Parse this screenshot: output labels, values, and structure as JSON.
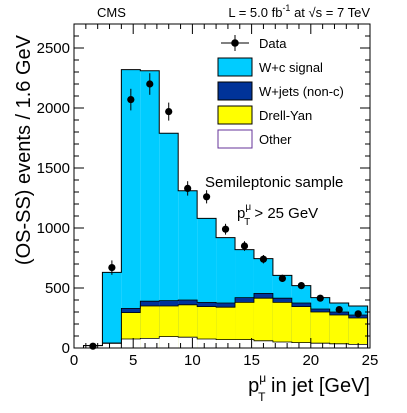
{
  "header": {
    "experiment": "CMS",
    "lumi_prefix": "L = 5.0 fb",
    "lumi_sup": "-1",
    "lumi_mid": " at ",
    "energy_root": "√s",
    "energy_value": " = 7 TeV"
  },
  "annotations": {
    "sample": "Semileptonic sample",
    "cut_p": "p",
    "cut_sup": "μ",
    "cut_sub": "T",
    "cut_rest": " > 25 GeV"
  },
  "colors": {
    "signal": "#00ccff",
    "wjets": "#003399",
    "drellyan": "#ffff00",
    "other": "#ffffff",
    "other_border": "#663399"
  },
  "chart_data": {
    "type": "bar",
    "stacked": true,
    "xlabel": {
      "main": "p",
      "sup": "μ",
      "sub": "T",
      "rest": " in jet [GeV]"
    },
    "ylabel": "(OS-SS) events / 1.6 GeV",
    "xlim": [
      0,
      25
    ],
    "ylim": [
      0,
      2700
    ],
    "xticks": [
      "0",
      "5",
      "10",
      "15",
      "20",
      "25"
    ],
    "yticks": [
      "0",
      "500",
      "1000",
      "1500",
      "2000",
      "2500"
    ],
    "bin_edges": [
      0.8,
      2.4,
      4.0,
      5.6,
      7.2,
      8.8,
      10.4,
      12.0,
      13.6,
      15.2,
      16.8,
      18.4,
      20.0,
      21.6,
      23.2,
      24.8
    ],
    "legend": {
      "placement": "top-right",
      "entries": [
        {
          "key": "data",
          "label": "Data",
          "style": "marker"
        },
        {
          "key": "signal",
          "label": "W+c signal",
          "style": "box"
        },
        {
          "key": "wjets",
          "label": "W+jets (non-c)",
          "style": "box"
        },
        {
          "key": "drellyan",
          "label": "Drell-Yan",
          "style": "box"
        },
        {
          "key": "other",
          "label": "Other",
          "style": "box"
        }
      ]
    },
    "series": [
      {
        "name": "Other",
        "key": "other",
        "values": [
          20,
          40,
          75,
          80,
          95,
          90,
          75,
          70,
          70,
          60,
          50,
          45,
          40,
          35,
          30
        ]
      },
      {
        "name": "Drell-Yan",
        "key": "drellyan",
        "values": [
          0,
          0,
          220,
          270,
          255,
          270,
          270,
          270,
          310,
          355,
          330,
          300,
          260,
          240,
          220
        ]
      },
      {
        "name": "W+jets (non-c)",
        "key": "wjets",
        "values": [
          0,
          0,
          35,
          40,
          45,
          40,
          35,
          35,
          40,
          40,
          35,
          30,
          25,
          25,
          25
        ]
      },
      {
        "name": "W+c signal",
        "key": "signal",
        "values": [
          0,
          590,
          1990,
          1920,
          1395,
          910,
          700,
          545,
          400,
          290,
          190,
          145,
          95,
          75,
          75
        ]
      }
    ],
    "data_points": {
      "x": [
        1.6,
        3.2,
        4.8,
        6.4,
        8.0,
        9.6,
        11.2,
        12.8,
        14.4,
        16.0,
        17.6,
        19.2,
        20.8,
        22.4,
        24.0
      ],
      "y": [
        15,
        670,
        2070,
        2200,
        1970,
        1330,
        1260,
        990,
        850,
        740,
        580,
        520,
        415,
        320,
        285
      ],
      "err": [
        25,
        60,
        90,
        90,
        75,
        60,
        55,
        45,
        40,
        35,
        30,
        28,
        25,
        22,
        20
      ]
    }
  }
}
